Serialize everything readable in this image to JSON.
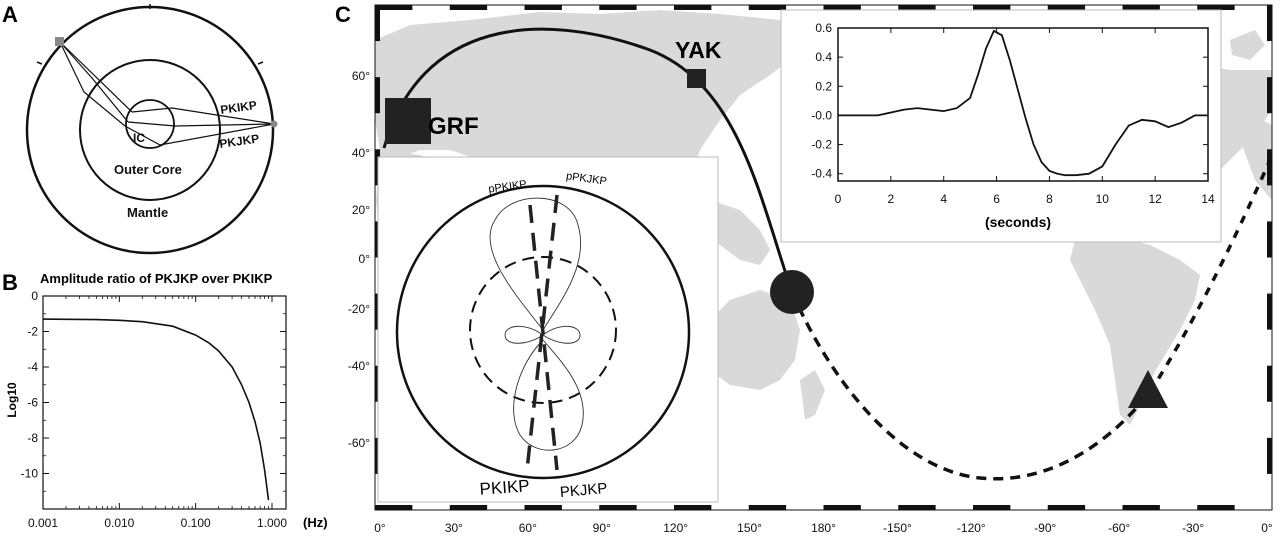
{
  "panelA": {
    "letter": "A",
    "labels": {
      "ic": "IC",
      "outer_core": "Outer Core",
      "mantle": "Mantle",
      "pkikp": "PKIKP",
      "pkjkp": "PKJKP"
    }
  },
  "panelB": {
    "letter": "B",
    "title": "Amplitude ratio of PKJKP over PKIKP",
    "ylabel": "Log10",
    "xunit": "(Hz)",
    "chart_data": {
      "type": "line",
      "title": "Amplitude ratio of PKJKP over PKIKP",
      "ylabel": "Log10",
      "xlabel": "(Hz)",
      "xscale": "log",
      "xlim": [
        0.001,
        1.0
      ],
      "ylim": [
        -12,
        0
      ],
      "xticks": [
        "0.001",
        "0.010",
        "0.100",
        "1.000"
      ],
      "yticks": [
        "0",
        "-2",
        "-4",
        "-6",
        "-8",
        "-10"
      ],
      "x": [
        0.001,
        0.002,
        0.005,
        0.01,
        0.02,
        0.05,
        0.1,
        0.15,
        0.2,
        0.3,
        0.4,
        0.5,
        0.6,
        0.7,
        0.8,
        0.9
      ],
      "y": [
        -1.3,
        -1.31,
        -1.33,
        -1.37,
        -1.45,
        -1.7,
        -2.2,
        -2.65,
        -3.1,
        -4.0,
        -5.0,
        -6.0,
        -7.1,
        -8.3,
        -9.8,
        -11.5
      ]
    }
  },
  "panelC": {
    "letter": "C",
    "stations": {
      "grf": "GRF",
      "yak": "YAK"
    },
    "lat_ticks": [
      "60°",
      "40°",
      "20°",
      "0°",
      "-20°",
      "-40°",
      "-60°"
    ],
    "lon_ticks": [
      "0°",
      "30°",
      "60°",
      "90°",
      "120°",
      "150°",
      "180°",
      "-150°",
      "-120°",
      "-90°",
      "-60°",
      "-30°",
      "0°"
    ],
    "radiation": {
      "labels": {
        "p_pkikp": "pPKIKP",
        "p_pkjkp": "pPKJKP",
        "pkikp": "PKIKP",
        "pkjkp": "PKJKP"
      }
    },
    "waveform": {
      "xlabel": "(seconds)",
      "chart_data": {
        "type": "line",
        "xlabel": "(seconds)",
        "xlim": [
          0,
          14
        ],
        "ylim": [
          -0.45,
          0.6
        ],
        "xticks": [
          "0",
          "2",
          "4",
          "6",
          "8",
          "10",
          "12",
          "14"
        ],
        "yticks": [
          "0.6",
          "0.4",
          "0.2",
          "-0.0",
          "-0.2",
          "-0.4"
        ],
        "x": [
          0,
          0.5,
          1,
          1.5,
          2,
          2.5,
          3,
          3.5,
          4,
          4.5,
          5,
          5.3,
          5.6,
          5.9,
          6.2,
          6.5,
          6.8,
          7.1,
          7.4,
          7.7,
          8,
          8.3,
          8.6,
          9,
          9.5,
          10,
          10.5,
          11,
          11.5,
          12,
          12.5,
          13,
          13.5,
          14
        ],
        "y": [
          0,
          0,
          0,
          0,
          0.02,
          0.04,
          0.05,
          0.04,
          0.03,
          0.05,
          0.12,
          0.28,
          0.46,
          0.58,
          0.55,
          0.38,
          0.18,
          -0.02,
          -0.2,
          -0.32,
          -0.38,
          -0.4,
          -0.41,
          -0.41,
          -0.4,
          -0.35,
          -0.2,
          -0.07,
          -0.03,
          -0.04,
          -0.08,
          -0.05,
          0,
          0
        ]
      }
    }
  }
}
